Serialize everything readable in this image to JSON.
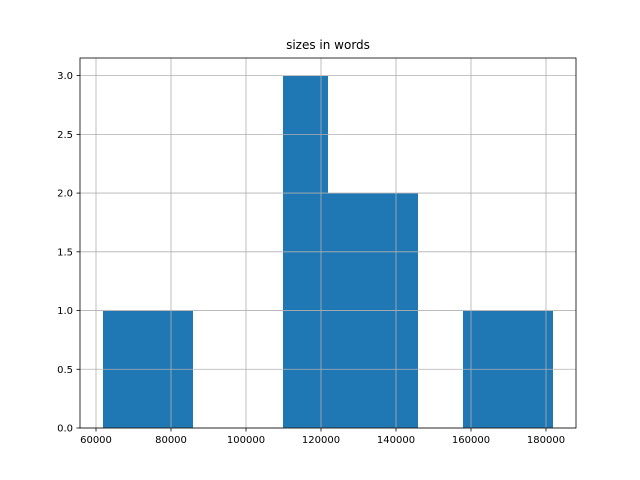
{
  "chart_data": {
    "type": "histogram",
    "title": "sizes in words",
    "bins": [
      61867,
      73867,
      85867,
      97867,
      109867,
      121867,
      133867,
      145867,
      157867,
      169867,
      181867
    ],
    "counts": [
      1,
      1,
      0,
      0,
      3,
      2,
      2,
      0,
      1,
      1
    ],
    "color": "#1f77b4",
    "xlim": [
      55733,
      188000
    ],
    "xticks": [
      60000,
      80000,
      100000,
      120000,
      140000,
      160000,
      180000
    ],
    "ylim": [
      0,
      3.15
    ],
    "yticks": [
      {
        "value": 0,
        "label": "0.0"
      },
      {
        "value": 0.5,
        "label": "0.5"
      },
      {
        "value": 1,
        "label": "1.0"
      },
      {
        "value": 1.5,
        "label": "1.5"
      },
      {
        "value": 2,
        "label": "2.0"
      },
      {
        "value": 2.5,
        "label": "2.5"
      },
      {
        "value": 3,
        "label": "3.0"
      }
    ],
    "grid": true
  }
}
